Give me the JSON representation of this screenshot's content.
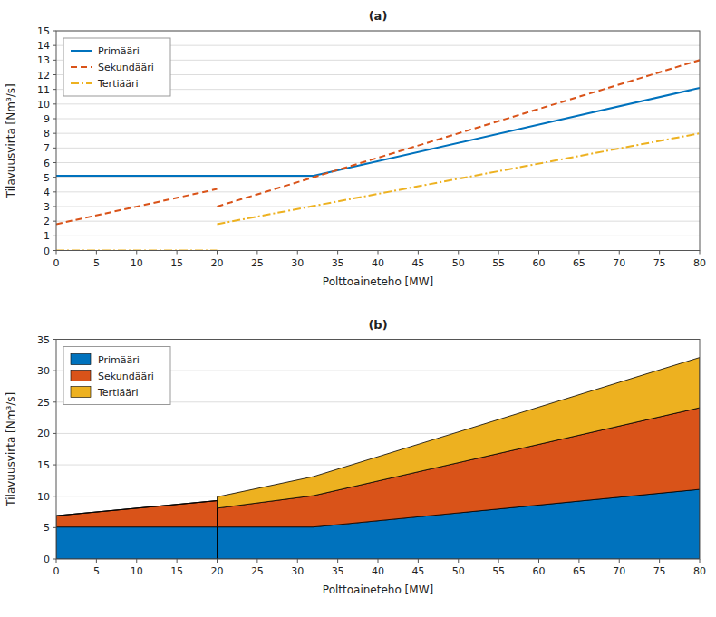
{
  "chart_data": [
    {
      "type": "line",
      "title": "(a)",
      "xlabel": "Polttoaineteho [MW]",
      "ylabel": "Tilavuusvirta [Nm³/s]",
      "x": [
        0,
        20,
        null,
        20,
        32,
        80
      ],
      "series": [
        {
          "name": "Primääri",
          "color": "#0072BD",
          "line_style": "solid",
          "values": [
            5.1,
            5.1,
            null,
            5.1,
            5.1,
            11.1
          ]
        },
        {
          "name": "Sekundääri",
          "color": "#D95319",
          "line_style": "dashed",
          "values": [
            1.8,
            4.2,
            null,
            3.0,
            5.0,
            13.0
          ]
        },
        {
          "name": "Tertiääri",
          "color": "#EDB120",
          "line_style": "dashdot",
          "values": [
            0.0,
            0.0,
            null,
            1.8,
            3.04,
            8.0
          ]
        }
      ],
      "xlim": [
        0,
        80
      ],
      "xticks": [
        0,
        5,
        10,
        15,
        20,
        25,
        30,
        35,
        40,
        45,
        50,
        55,
        60,
        65,
        70,
        75,
        80
      ],
      "ylim": [
        0,
        15
      ],
      "yticks": [
        0,
        1,
        2,
        3,
        4,
        5,
        6,
        7,
        8,
        9,
        10,
        11,
        12,
        13,
        14,
        15
      ],
      "grid": "y",
      "legend": "upper left"
    },
    {
      "type": "area",
      "stacked": true,
      "title": "(b)",
      "xlabel": "Polttoaineteho [MW]",
      "ylabel": "Tilavuusvirta [Nm³/s]",
      "x": [
        0,
        20,
        null,
        20,
        32,
        80
      ],
      "series": [
        {
          "name": "Primääri",
          "color": "#0072BD",
          "values": [
            5.1,
            5.1,
            null,
            5.1,
            5.1,
            11.1
          ]
        },
        {
          "name": "Sekundääri",
          "color": "#D95319",
          "values": [
            1.8,
            4.2,
            null,
            3.0,
            5.0,
            13.0
          ]
        },
        {
          "name": "Tertiääri",
          "color": "#EDB120",
          "values": [
            0.0,
            0.0,
            null,
            1.8,
            3.04,
            8.0
          ]
        }
      ],
      "xlim": [
        0,
        80
      ],
      "xticks": [
        0,
        5,
        10,
        15,
        20,
        25,
        30,
        35,
        40,
        45,
        50,
        55,
        60,
        65,
        70,
        75,
        80
      ],
      "ylim": [
        0,
        35
      ],
      "yticks": [
        0,
        5,
        10,
        15,
        20,
        25,
        30,
        35
      ],
      "grid": "y",
      "legend": "upper left"
    }
  ]
}
